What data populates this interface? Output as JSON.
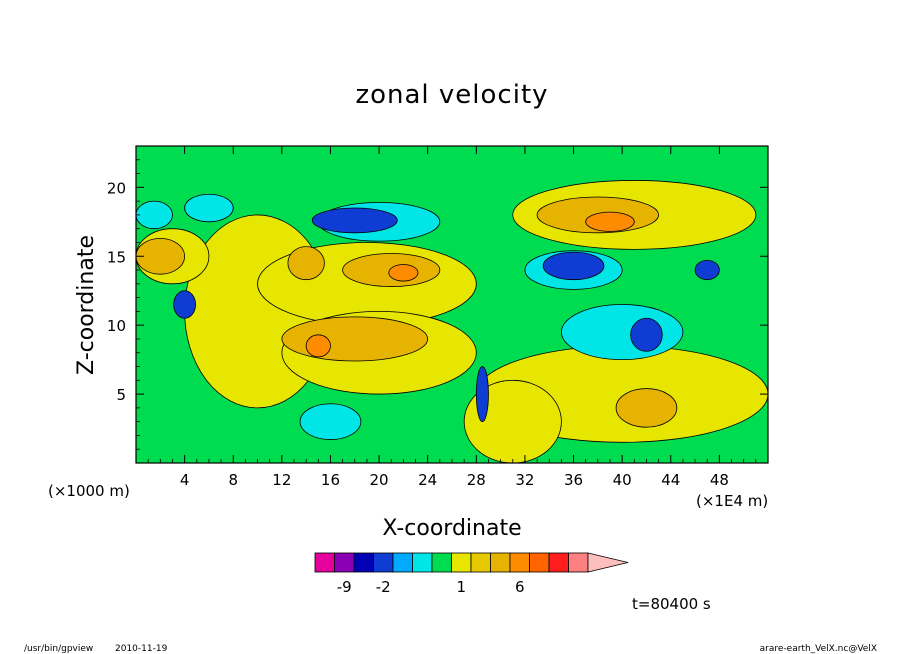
{
  "chart_data": {
    "type": "heatmap",
    "title": "zonal velocity",
    "xlabel": "X-coordinate",
    "ylabel": "Z-coordinate",
    "x_unit_left": "(×1000 m)",
    "x_unit_right": "(×1E4 m)",
    "xlim": [
      0,
      52
    ],
    "ylim": [
      0,
      23
    ],
    "x_ticks": [
      "4",
      "8",
      "12",
      "16",
      "20",
      "24",
      "28",
      "32",
      "36",
      "40",
      "44",
      "48"
    ],
    "x_tick_values": [
      4,
      8,
      12,
      16,
      20,
      24,
      28,
      32,
      36,
      40,
      44,
      48
    ],
    "y_ticks": [
      "5",
      "10",
      "15",
      "20"
    ],
    "y_tick_values": [
      5,
      10,
      15,
      20
    ],
    "colorbar": {
      "colors": [
        "#e6009c",
        "#8c00b4",
        "#0000b4",
        "#0f3cd2",
        "#00aaff",
        "#00e6e6",
        "#00dc50",
        "#e6e600",
        "#e6c800",
        "#e6b400",
        "#ff8c00",
        "#ff6400",
        "#ff1e1e",
        "#ff8080",
        "#ffbebe"
      ],
      "labels": [
        "-9",
        "-2",
        "1",
        "6"
      ],
      "label_positions": [
        1.5,
        3.5,
        7.5,
        10.5
      ]
    },
    "fields": {
      "background_color": "#00dc50",
      "regions": [
        {
          "kind": "yellow",
          "color": "#e6e600",
          "cx": 10,
          "cy": 11,
          "rx": 6,
          "ry": 7
        },
        {
          "kind": "yellow",
          "color": "#e6e600",
          "cx": 19,
          "cy": 13,
          "rx": 9,
          "ry": 3
        },
        {
          "kind": "yellow",
          "color": "#e6e600",
          "cx": 20,
          "cy": 8,
          "rx": 8,
          "ry": 3
        },
        {
          "kind": "yellow",
          "color": "#e6e600",
          "cx": 40,
          "cy": 5,
          "rx": 12,
          "ry": 3.5
        },
        {
          "kind": "yellow",
          "color": "#e6e600",
          "cx": 41,
          "cy": 18,
          "rx": 10,
          "ry": 2.5
        },
        {
          "kind": "yellow",
          "color": "#e6e600",
          "cx": 31,
          "cy": 3,
          "rx": 4,
          "ry": 3
        },
        {
          "kind": "yellow",
          "color": "#e6e600",
          "cx": 3,
          "cy": 15,
          "rx": 3,
          "ry": 2
        },
        {
          "kind": "orange",
          "color": "#e6b400",
          "cx": 18,
          "cy": 9,
          "rx": 6,
          "ry": 1.6
        },
        {
          "kind": "orange",
          "color": "#e6b400",
          "cx": 21,
          "cy": 14,
          "rx": 4,
          "ry": 1.2
        },
        {
          "kind": "orange",
          "color": "#e6b400",
          "cx": 38,
          "cy": 18,
          "rx": 5,
          "ry": 1.3
        },
        {
          "kind": "orange",
          "color": "#e6b400",
          "cx": 42,
          "cy": 4,
          "rx": 2.5,
          "ry": 1.4
        },
        {
          "kind": "orange",
          "color": "#e6b400",
          "cx": 14,
          "cy": 14.5,
          "rx": 1.5,
          "ry": 1.2
        },
        {
          "kind": "orange",
          "color": "#e6b400",
          "cx": 2,
          "cy": 15,
          "rx": 2,
          "ry": 1.3
        },
        {
          "kind": "orange-dark",
          "color": "#ff8c00",
          "cx": 39,
          "cy": 17.5,
          "rx": 2,
          "ry": 0.7
        },
        {
          "kind": "orange-dark",
          "color": "#ff8c00",
          "cx": 15,
          "cy": 8.5,
          "rx": 1,
          "ry": 0.8
        },
        {
          "kind": "orange-dark",
          "color": "#ff8c00",
          "cx": 22,
          "cy": 13.8,
          "rx": 1.2,
          "ry": 0.6
        },
        {
          "kind": "cyan",
          "color": "#00e6e6",
          "cx": 20,
          "cy": 17.5,
          "rx": 5,
          "ry": 1.4
        },
        {
          "kind": "cyan",
          "color": "#00e6e6",
          "cx": 36,
          "cy": 14,
          "rx": 4,
          "ry": 1.4
        },
        {
          "kind": "cyan",
          "color": "#00e6e6",
          "cx": 40,
          "cy": 9.5,
          "rx": 5,
          "ry": 2
        },
        {
          "kind": "cyan",
          "color": "#00e6e6",
          "cx": 16,
          "cy": 3,
          "rx": 2.5,
          "ry": 1.3
        },
        {
          "kind": "cyan",
          "color": "#00e6e6",
          "cx": 1.5,
          "cy": 18,
          "rx": 1.5,
          "ry": 1
        },
        {
          "kind": "cyan",
          "color": "#00e6e6",
          "cx": 6,
          "cy": 18.5,
          "rx": 2,
          "ry": 1
        },
        {
          "kind": "blue",
          "color": "#0f3cd2",
          "cx": 18,
          "cy": 17.6,
          "rx": 3.5,
          "ry": 0.9
        },
        {
          "kind": "blue",
          "color": "#0f3cd2",
          "cx": 36,
          "cy": 14.3,
          "rx": 2.5,
          "ry": 1
        },
        {
          "kind": "blue",
          "color": "#0f3cd2",
          "cx": 42,
          "cy": 9.3,
          "rx": 1.3,
          "ry": 1.2
        },
        {
          "kind": "blue",
          "color": "#0f3cd2",
          "cx": 4,
          "cy": 11.5,
          "rx": 0.9,
          "ry": 1
        },
        {
          "kind": "blue",
          "color": "#0f3cd2",
          "cx": 28.5,
          "cy": 5,
          "rx": 0.5,
          "ry": 2
        },
        {
          "kind": "blue",
          "color": "#0f3cd2",
          "cx": 47,
          "cy": 14,
          "rx": 1,
          "ry": 0.7
        }
      ]
    }
  },
  "time_label": "t=80400 s",
  "footer": {
    "left_program": "/usr/bin/gpview",
    "left_date": "2010-11-19",
    "right_file": "arare-earth_VelX.nc@VelX"
  }
}
